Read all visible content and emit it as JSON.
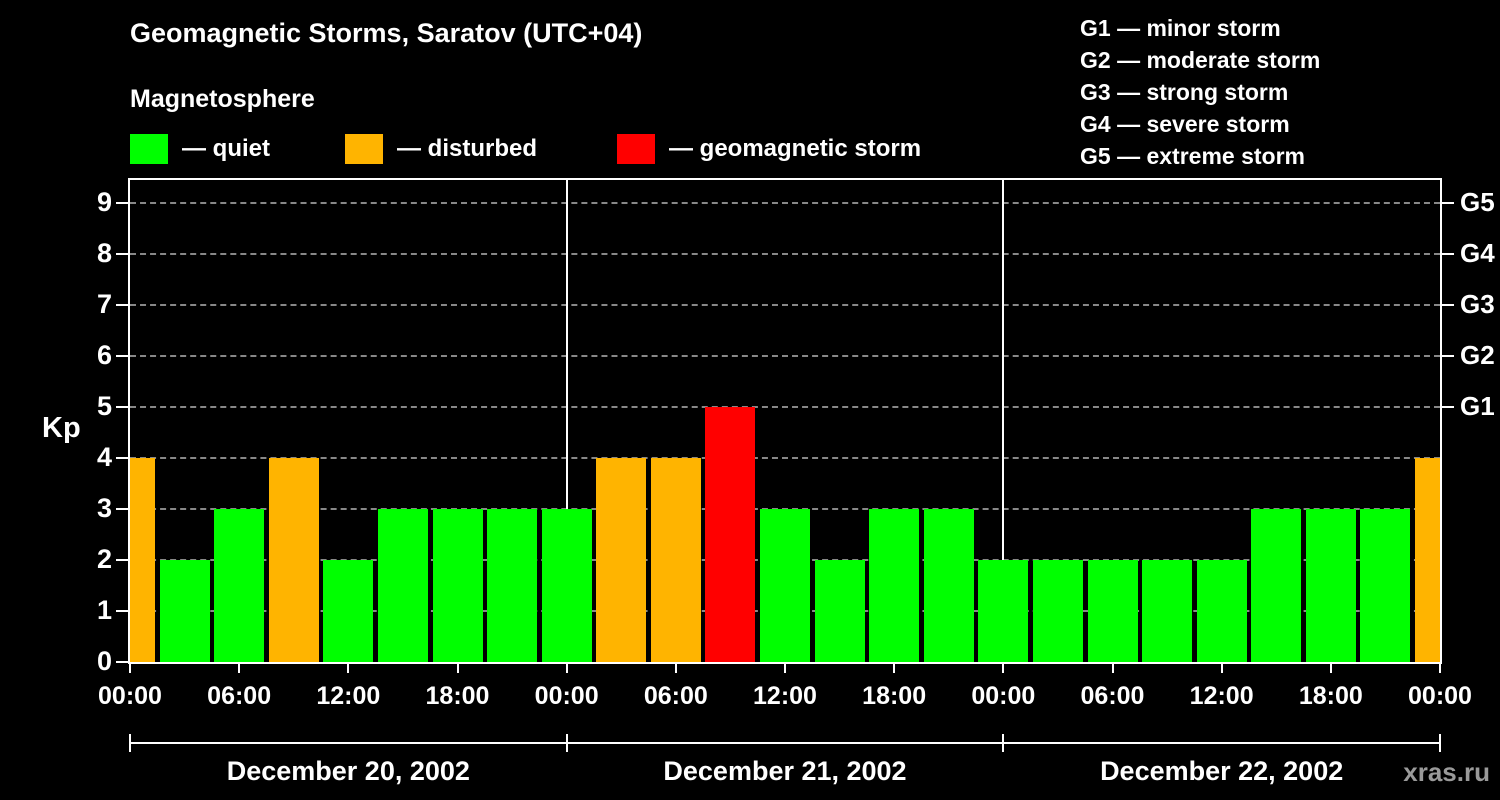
{
  "title": "Geomagnetic Storms, Saratov (UTC+04)",
  "subtitle": "Magnetosphere",
  "legend": {
    "quiet": "— quiet",
    "disturbed": "— disturbed",
    "storm": "— geomagnetic storm"
  },
  "g_scale": [
    "G1 — minor storm",
    "G2 — moderate storm",
    "G3 — strong storm",
    "G4 — severe storm",
    "G5 — extreme storm"
  ],
  "watermark": "xras.ru",
  "colors": {
    "quiet": "#00ff00",
    "disturbed": "#ffb400",
    "storm": "#ff0000",
    "background": "#000000",
    "text": "#ffffff",
    "grid": "#888888",
    "axis": "#ffffff",
    "watermark": "#9a9a9a"
  },
  "chart_data": {
    "type": "bar",
    "title": "Geomagnetic Storms, Saratov (UTC+04)",
    "ylabel": "Kp",
    "ylim": [
      0,
      9.5
    ],
    "grid": true,
    "legend_position": "top-left",
    "interval_hours": 3,
    "y_ticks": [
      0,
      1,
      2,
      3,
      4,
      5,
      6,
      7,
      8,
      9
    ],
    "right_axis": [
      {
        "label": "G1",
        "kp": 5
      },
      {
        "label": "G2",
        "kp": 6
      },
      {
        "label": "G3",
        "kp": 7
      },
      {
        "label": "G4",
        "kp": 8
      },
      {
        "label": "G5",
        "kp": 9
      }
    ],
    "x_tick_hours": [
      0,
      6,
      12,
      18,
      24,
      30,
      36,
      42,
      48,
      54,
      60,
      66,
      72
    ],
    "x_tick_labels": [
      "00:00",
      "06:00",
      "12:00",
      "18:00",
      "00:00",
      "06:00",
      "12:00",
      "18:00",
      "00:00",
      "06:00",
      "12:00",
      "18:00",
      "00:00"
    ],
    "days": [
      "December 20, 2002",
      "December 21, 2002",
      "December 22, 2002"
    ],
    "thresholds": {
      "disturbed": 4,
      "storm": 5
    },
    "kp_values": [
      4,
      2,
      3,
      4,
      2,
      3,
      3,
      3,
      3,
      4,
      4,
      5,
      3,
      2,
      3,
      3,
      2,
      2,
      2,
      2,
      2,
      3,
      3,
      3,
      4
    ]
  }
}
